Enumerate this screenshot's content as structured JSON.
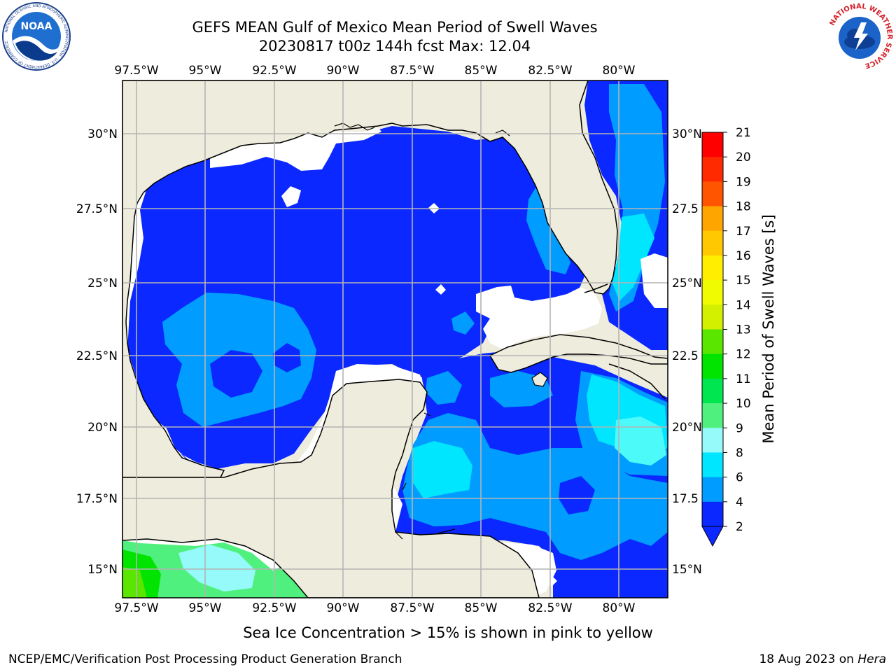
{
  "header": {
    "title_line1": "GEFS MEAN Gulf of Mexico Mean Period of Swell Waves",
    "title_line2": "20230817 t00z 144h fcst   Max: 12.04"
  },
  "logos": {
    "left": "NOAA",
    "left_ring": "NATIONAL OCEANIC AND ATMOSPHERIC ADMINISTRATION · U.S. DEPARTMENT OF COMMERCE",
    "right_ring": "NATIONAL WEATHER SERVICE"
  },
  "map": {
    "lon_labels": [
      "97.5°W",
      "95°W",
      "92.5°W",
      "90°W",
      "87.5°W",
      "85°W",
      "82.5°W",
      "80°W"
    ],
    "lat_labels_left": [
      "30°N",
      "27.5°N",
      "25°N",
      "22.5°N",
      "20°N",
      "17.5°N",
      "15°N"
    ],
    "lat_labels_right": [
      "30°N",
      "27.5",
      "25°N",
      "22.5",
      "20°N",
      "17.5",
      "15°N"
    ],
    "colors": {
      "land": "#eeecdc",
      "no_data": "#ffffff",
      "grid": "#b4b4b4",
      "coast": "#000000"
    }
  },
  "colorbar": {
    "label": "Mean Period of Swell Waves [s]",
    "ticks": [
      "21",
      "20",
      "19",
      "18",
      "17",
      "16",
      "15",
      "14",
      "13",
      "12",
      "11",
      "10",
      "9",
      "8",
      "6",
      "4",
      "2"
    ],
    "bins_top_to_bottom": [
      "#ff0000",
      "#ff2a00",
      "#ff5500",
      "#ff7f00",
      "#ffa500",
      "#ffc800",
      "#ffee00",
      "#f0fa00",
      "#d2f000",
      "#b4ee00",
      "#5be600",
      "#00e400",
      "#00e650",
      "#50f07f",
      "#96fafa",
      "#4dfafa",
      "#00e6ff",
      "#009cff",
      "#0a28ff"
    ]
  },
  "footer": {
    "notice": "Sea Ice Concentration > 15% is shown in pink to yellow",
    "credit": "NCEP/EMC/Verification Post Processing Product Generation Branch",
    "date": "18 Aug 2023 on",
    "host": "Hera"
  }
}
